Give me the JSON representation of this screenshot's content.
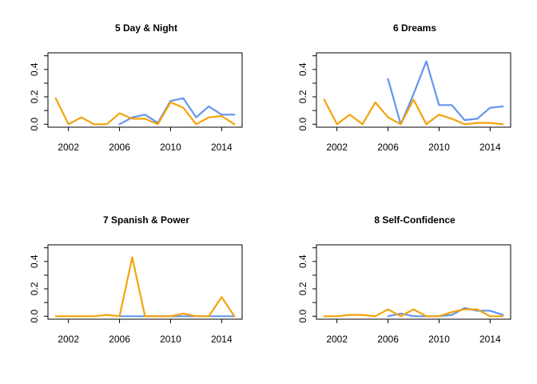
{
  "colors": {
    "blue": "#6495ED",
    "orange": "#F5A20A"
  },
  "chart_data": [
    {
      "type": "line",
      "title": "5 Day & Night",
      "xlabel": "",
      "ylabel": "",
      "xlim": [
        2001,
        2015
      ],
      "ylim": [
        0,
        0.5
      ],
      "xticks": [
        2002,
        2006,
        2010,
        2014
      ],
      "yticks": [
        0.0,
        0.2,
        0.4
      ],
      "xtick_labels": [
        "2002",
        "2006",
        "2010",
        "2014"
      ],
      "ytick_labels": [
        "0.0",
        "0.2",
        "0.4"
      ],
      "series": [
        {
          "color": "blue",
          "x": [
            2006,
            2007,
            2008,
            2009,
            2010,
            2011,
            2012,
            2013,
            2014,
            2015
          ],
          "y": [
            0.0,
            0.05,
            0.07,
            0.01,
            0.17,
            0.19,
            0.05,
            0.13,
            0.07,
            0.07
          ]
        },
        {
          "color": "orange",
          "x": [
            2001,
            2002,
            2003,
            2004,
            2005,
            2006,
            2007,
            2008,
            2009,
            2010,
            2011,
            2012,
            2013,
            2014,
            2015
          ],
          "y": [
            0.19,
            0.0,
            0.05,
            0.0,
            0.0,
            0.08,
            0.04,
            0.04,
            0.0,
            0.16,
            0.12,
            0.0,
            0.05,
            0.06,
            0.0
          ]
        }
      ]
    },
    {
      "type": "line",
      "title": "6 Dreams",
      "xlabel": "",
      "ylabel": "",
      "xlim": [
        2001,
        2015
      ],
      "ylim": [
        0,
        0.5
      ],
      "xticks": [
        2002,
        2006,
        2010,
        2014
      ],
      "yticks": [
        0.0,
        0.2,
        0.4
      ],
      "xtick_labels": [
        "2002",
        "2006",
        "2010",
        "2014"
      ],
      "ytick_labels": [
        "0.0",
        "0.2",
        "0.4"
      ],
      "series": [
        {
          "color": "blue",
          "x": [
            2006,
            2007,
            2008,
            2009,
            2010,
            2011,
            2012,
            2013,
            2014,
            2015
          ],
          "y": [
            0.33,
            0.0,
            0.22,
            0.46,
            0.14,
            0.14,
            0.03,
            0.04,
            0.12,
            0.13
          ]
        },
        {
          "color": "orange",
          "x": [
            2001,
            2002,
            2003,
            2004,
            2005,
            2006,
            2007,
            2008,
            2009,
            2010,
            2011,
            2012,
            2013,
            2014,
            2015
          ],
          "y": [
            0.18,
            0.0,
            0.07,
            0.0,
            0.16,
            0.05,
            0.0,
            0.18,
            0.0,
            0.07,
            0.04,
            0.0,
            0.01,
            0.01,
            0.0
          ]
        }
      ]
    },
    {
      "type": "line",
      "title": "7 Spanish & Power",
      "xlabel": "",
      "ylabel": "",
      "xlim": [
        2001,
        2015
      ],
      "ylim": [
        0,
        0.5
      ],
      "xticks": [
        2002,
        2006,
        2010,
        2014
      ],
      "yticks": [
        0.0,
        0.2,
        0.4
      ],
      "xtick_labels": [
        "2002",
        "2006",
        "2010",
        "2014"
      ],
      "ytick_labels": [
        "0.0",
        "0.2",
        "0.4"
      ],
      "series": [
        {
          "color": "blue",
          "x": [
            2006,
            2007,
            2008,
            2009,
            2010,
            2011,
            2012,
            2013,
            2014,
            2015
          ],
          "y": [
            0.0,
            0.0,
            0.0,
            0.0,
            0.0,
            0.0,
            0.0,
            0.0,
            0.0,
            0.0
          ]
        },
        {
          "color": "orange",
          "x": [
            2001,
            2002,
            2003,
            2004,
            2005,
            2006,
            2007,
            2008,
            2009,
            2010,
            2011,
            2012,
            2013,
            2014,
            2015
          ],
          "y": [
            0.0,
            0.0,
            0.0,
            0.0,
            0.01,
            0.0,
            0.43,
            0.0,
            0.0,
            0.0,
            0.02,
            0.0,
            0.0,
            0.14,
            0.0
          ]
        }
      ]
    },
    {
      "type": "line",
      "title": "8 Self-Confidence",
      "xlabel": "",
      "ylabel": "",
      "xlim": [
        2001,
        2015
      ],
      "ylim": [
        0,
        0.5
      ],
      "xticks": [
        2002,
        2006,
        2010,
        2014
      ],
      "yticks": [
        0.0,
        0.2,
        0.4
      ],
      "xtick_labels": [
        "2002",
        "2006",
        "2010",
        "2014"
      ],
      "ytick_labels": [
        "0.0",
        "0.2",
        "0.4"
      ],
      "series": [
        {
          "color": "blue",
          "x": [
            2006,
            2007,
            2008,
            2009,
            2010,
            2011,
            2012,
            2013,
            2014,
            2015
          ],
          "y": [
            0.0,
            0.02,
            0.0,
            0.0,
            0.0,
            0.01,
            0.06,
            0.04,
            0.04,
            0.01
          ]
        },
        {
          "color": "orange",
          "x": [
            2001,
            2002,
            2003,
            2004,
            2005,
            2006,
            2007,
            2008,
            2009,
            2010,
            2011,
            2012,
            2013,
            2014,
            2015
          ],
          "y": [
            0.0,
            0.0,
            0.01,
            0.01,
            0.0,
            0.05,
            0.0,
            0.05,
            0.0,
            0.0,
            0.03,
            0.05,
            0.05,
            0.0,
            0.0
          ]
        }
      ]
    }
  ]
}
